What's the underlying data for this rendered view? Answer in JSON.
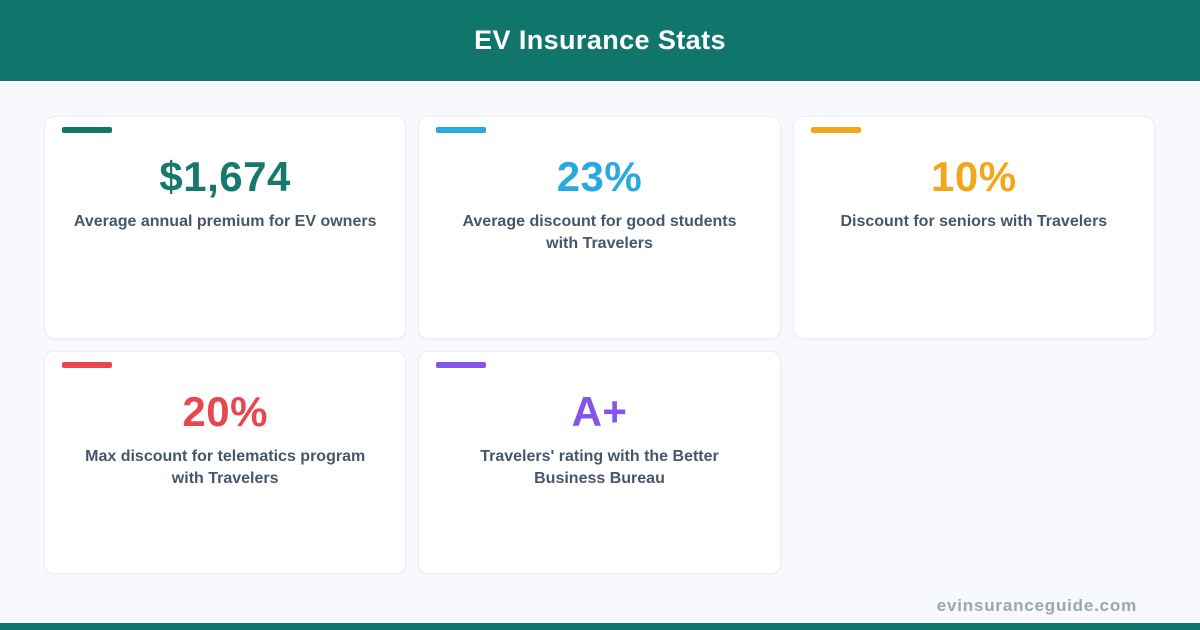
{
  "header": {
    "title": "EV Insurance Stats"
  },
  "cards": [
    {
      "value": "$1,674",
      "label": "Average annual premium for EV owners",
      "color": "#17796D",
      "accent": "#15746A"
    },
    {
      "value": "23%",
      "label": "Average discount for good students\nwith Travelers",
      "color": "#29A9E1",
      "accent": "#29A9E1"
    },
    {
      "value": "10%",
      "label": "Discount for seniors with Travelers",
      "color": "#F2A71B",
      "accent": "#F2A71B"
    },
    {
      "value": "20%",
      "label": "Max discount for telematics program\nwith Travelers",
      "color": "#E8474E",
      "accent": "#E8474E"
    },
    {
      "value": "A+",
      "label": "Travelers' rating with the Better\nBusiness Bureau",
      "color": "#8455E9",
      "accent": "#8455E9"
    }
  ],
  "footer": {
    "site": "evinsuranceguide.com"
  },
  "colors": {
    "header_bg": "#10756B",
    "page_bg": "#F7F9FC",
    "card_border": "#E9EEF4",
    "label_text": "#47566A",
    "footer_text": "#9AA6B4",
    "bottom_bar": "#10756B"
  },
  "chart_data": {
    "type": "table",
    "title": "EV Insurance Stats",
    "categories": [
      "Average annual premium for EV owners",
      "Average discount for good students with Travelers",
      "Discount for seniors with Travelers",
      "Max discount for telematics program with Travelers",
      "Travelers' rating with the Better Business Bureau"
    ],
    "values": [
      "$1,674",
      "23%",
      "10%",
      "20%",
      "A+"
    ]
  }
}
